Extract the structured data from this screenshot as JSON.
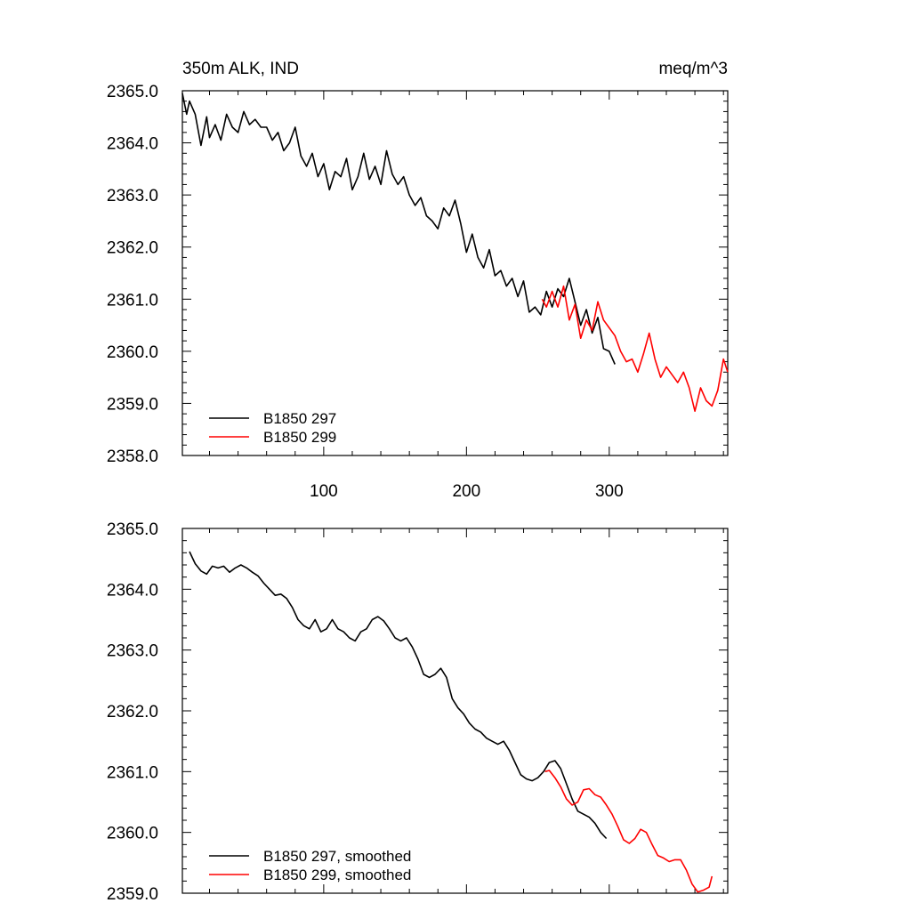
{
  "chart_data": [
    {
      "type": "line",
      "title_left": "350m ALK, IND",
      "title_right": "meq/m^3",
      "xlim": [
        1,
        383
      ],
      "ylim": [
        2358.0,
        2365.0
      ],
      "x_ticks": [
        100,
        200,
        300
      ],
      "x_tick_labels": [
        "100",
        "200",
        "300"
      ],
      "y_ticks": [
        2358.0,
        2359.0,
        2360.0,
        2361.0,
        2362.0,
        2363.0,
        2364.0,
        2365.0
      ],
      "y_tick_labels": [
        "2358.0",
        "2359.0",
        "2360.0",
        "2361.0",
        "2362.0",
        "2363.0",
        "2364.0",
        "2365.0"
      ],
      "legend_position": "bottom-left",
      "series": [
        {
          "name": "B1850 297",
          "color": "#000000",
          "points": [
            [
              1,
              2364.95
            ],
            [
              4,
              2364.55
            ],
            [
              6,
              2364.8
            ],
            [
              10,
              2364.55
            ],
            [
              14,
              2363.95
            ],
            [
              18,
              2364.5
            ],
            [
              20,
              2364.1
            ],
            [
              24,
              2364.35
            ],
            [
              28,
              2364.05
            ],
            [
              32,
              2364.55
            ],
            [
              36,
              2364.3
            ],
            [
              40,
              2364.2
            ],
            [
              44,
              2364.6
            ],
            [
              48,
              2364.35
            ],
            [
              52,
              2364.45
            ],
            [
              56,
              2364.3
            ],
            [
              60,
              2364.3
            ],
            [
              64,
              2364.05
            ],
            [
              68,
              2364.2
            ],
            [
              72,
              2363.85
            ],
            [
              76,
              2364.0
            ],
            [
              80,
              2364.3
            ],
            [
              84,
              2363.75
            ],
            [
              88,
              2363.55
            ],
            [
              92,
              2363.8
            ],
            [
              96,
              2363.35
            ],
            [
              100,
              2363.6
            ],
            [
              104,
              2363.1
            ],
            [
              108,
              2363.45
            ],
            [
              112,
              2363.35
            ],
            [
              116,
              2363.7
            ],
            [
              120,
              2363.1
            ],
            [
              124,
              2363.35
            ],
            [
              128,
              2363.8
            ],
            [
              132,
              2363.3
            ],
            [
              136,
              2363.55
            ],
            [
              140,
              2363.2
            ],
            [
              144,
              2363.85
            ],
            [
              148,
              2363.4
            ],
            [
              152,
              2363.2
            ],
            [
              156,
              2363.35
            ],
            [
              160,
              2363.0
            ],
            [
              164,
              2362.8
            ],
            [
              168,
              2362.95
            ],
            [
              172,
              2362.6
            ],
            [
              176,
              2362.5
            ],
            [
              180,
              2362.35
            ],
            [
              184,
              2362.75
            ],
            [
              188,
              2362.6
            ],
            [
              192,
              2362.9
            ],
            [
              196,
              2362.45
            ],
            [
              200,
              2361.9
            ],
            [
              204,
              2362.25
            ],
            [
              208,
              2361.8
            ],
            [
              212,
              2361.6
            ],
            [
              216,
              2361.95
            ],
            [
              220,
              2361.45
            ],
            [
              224,
              2361.55
            ],
            [
              228,
              2361.25
            ],
            [
              232,
              2361.4
            ],
            [
              236,
              2361.05
            ],
            [
              240,
              2361.35
            ],
            [
              244,
              2360.75
            ],
            [
              248,
              2360.85
            ],
            [
              252,
              2360.7
            ],
            [
              256,
              2361.15
            ],
            [
              260,
              2360.85
            ],
            [
              264,
              2361.2
            ],
            [
              268,
              2361.05
            ],
            [
              272,
              2361.4
            ],
            [
              276,
              2360.95
            ],
            [
              280,
              2360.5
            ],
            [
              284,
              2360.8
            ],
            [
              288,
              2360.35
            ],
            [
              292,
              2360.65
            ],
            [
              296,
              2360.05
            ],
            [
              300,
              2360.0
            ],
            [
              304,
              2359.75
            ]
          ]
        },
        {
          "name": "B1850 299",
          "color": "#ff0000",
          "points": [
            [
              253,
              2361.0
            ],
            [
              256,
              2360.85
            ],
            [
              260,
              2361.15
            ],
            [
              264,
              2360.85
            ],
            [
              268,
              2361.25
            ],
            [
              272,
              2360.6
            ],
            [
              276,
              2360.9
            ],
            [
              280,
              2360.25
            ],
            [
              284,
              2360.6
            ],
            [
              288,
              2360.4
            ],
            [
              292,
              2360.95
            ],
            [
              296,
              2360.6
            ],
            [
              300,
              2360.45
            ],
            [
              304,
              2360.3
            ],
            [
              308,
              2360.0
            ],
            [
              312,
              2359.8
            ],
            [
              316,
              2359.85
            ],
            [
              320,
              2359.6
            ],
            [
              324,
              2359.95
            ],
            [
              328,
              2360.35
            ],
            [
              332,
              2359.85
            ],
            [
              336,
              2359.5
            ],
            [
              340,
              2359.7
            ],
            [
              344,
              2359.55
            ],
            [
              348,
              2359.4
            ],
            [
              352,
              2359.6
            ],
            [
              356,
              2359.3
            ],
            [
              360,
              2358.85
            ],
            [
              364,
              2359.3
            ],
            [
              368,
              2359.05
            ],
            [
              372,
              2358.95
            ],
            [
              376,
              2359.25
            ],
            [
              380,
              2359.85
            ],
            [
              383,
              2359.6
            ]
          ]
        }
      ]
    },
    {
      "type": "line",
      "xlim": [
        1,
        383
      ],
      "ylim": [
        2359.0,
        2365.0
      ],
      "y_ticks": [
        2359.0,
        2360.0,
        2361.0,
        2362.0,
        2363.0,
        2364.0,
        2365.0
      ],
      "y_tick_labels": [
        "2359.0",
        "2360.0",
        "2361.0",
        "2362.0",
        "2363.0",
        "2364.0",
        "2365.0"
      ],
      "x_ticks": [
        100,
        200,
        300
      ],
      "legend_position": "bottom-left",
      "series": [
        {
          "name": "B1850 297, smoothed",
          "color": "#000000",
          "points": [
            [
              6,
              2364.62
            ],
            [
              10,
              2364.42
            ],
            [
              14,
              2364.3
            ],
            [
              18,
              2364.25
            ],
            [
              22,
              2364.38
            ],
            [
              26,
              2364.35
            ],
            [
              30,
              2364.38
            ],
            [
              34,
              2364.28
            ],
            [
              38,
              2364.35
            ],
            [
              42,
              2364.4
            ],
            [
              46,
              2364.35
            ],
            [
              50,
              2364.28
            ],
            [
              54,
              2364.22
            ],
            [
              58,
              2364.1
            ],
            [
              62,
              2364.0
            ],
            [
              66,
              2363.9
            ],
            [
              70,
              2363.92
            ],
            [
              74,
              2363.85
            ],
            [
              78,
              2363.7
            ],
            [
              82,
              2363.5
            ],
            [
              86,
              2363.4
            ],
            [
              90,
              2363.35
            ],
            [
              94,
              2363.5
            ],
            [
              98,
              2363.3
            ],
            [
              102,
              2363.35
            ],
            [
              106,
              2363.5
            ],
            [
              110,
              2363.35
            ],
            [
              114,
              2363.3
            ],
            [
              118,
              2363.2
            ],
            [
              122,
              2363.15
            ],
            [
              126,
              2363.3
            ],
            [
              130,
              2363.35
            ],
            [
              134,
              2363.5
            ],
            [
              138,
              2363.55
            ],
            [
              142,
              2363.48
            ],
            [
              146,
              2363.35
            ],
            [
              150,
              2363.2
            ],
            [
              154,
              2363.15
            ],
            [
              158,
              2363.2
            ],
            [
              162,
              2363.05
            ],
            [
              166,
              2362.85
            ],
            [
              170,
              2362.6
            ],
            [
              174,
              2362.55
            ],
            [
              178,
              2362.6
            ],
            [
              182,
              2362.7
            ],
            [
              186,
              2362.55
            ],
            [
              190,
              2362.2
            ],
            [
              194,
              2362.05
            ],
            [
              198,
              2361.95
            ],
            [
              202,
              2361.8
            ],
            [
              206,
              2361.7
            ],
            [
              210,
              2361.65
            ],
            [
              214,
              2361.55
            ],
            [
              218,
              2361.5
            ],
            [
              222,
              2361.45
            ],
            [
              226,
              2361.5
            ],
            [
              230,
              2361.35
            ],
            [
              234,
              2361.15
            ],
            [
              238,
              2360.95
            ],
            [
              242,
              2360.88
            ],
            [
              246,
              2360.85
            ],
            [
              250,
              2360.9
            ],
            [
              254,
              2361.0
            ],
            [
              258,
              2361.15
            ],
            [
              262,
              2361.18
            ],
            [
              266,
              2361.05
            ],
            [
              270,
              2360.8
            ],
            [
              274,
              2360.55
            ],
            [
              278,
              2360.35
            ],
            [
              282,
              2360.3
            ],
            [
              286,
              2360.25
            ],
            [
              290,
              2360.15
            ],
            [
              294,
              2360.0
            ],
            [
              298,
              2359.9
            ]
          ]
        },
        {
          "name": "B1850 299, smoothed",
          "color": "#ff0000",
          "points": [
            [
              255,
              2361.0
            ],
            [
              258,
              2361.02
            ],
            [
              262,
              2360.9
            ],
            [
              266,
              2360.75
            ],
            [
              270,
              2360.55
            ],
            [
              274,
              2360.45
            ],
            [
              278,
              2360.5
            ],
            [
              282,
              2360.7
            ],
            [
              286,
              2360.72
            ],
            [
              290,
              2360.62
            ],
            [
              294,
              2360.58
            ],
            [
              298,
              2360.45
            ],
            [
              302,
              2360.3
            ],
            [
              306,
              2360.1
            ],
            [
              310,
              2359.88
            ],
            [
              314,
              2359.82
            ],
            [
              318,
              2359.9
            ],
            [
              322,
              2360.05
            ],
            [
              326,
              2360.0
            ],
            [
              330,
              2359.8
            ],
            [
              334,
              2359.62
            ],
            [
              338,
              2359.58
            ],
            [
              342,
              2359.52
            ],
            [
              346,
              2359.55
            ],
            [
              350,
              2359.55
            ],
            [
              354,
              2359.38
            ],
            [
              358,
              2359.15
            ],
            [
              362,
              2359.02
            ],
            [
              366,
              2359.05
            ],
            [
              370,
              2359.1
            ],
            [
              372,
              2359.28
            ]
          ]
        }
      ]
    }
  ]
}
